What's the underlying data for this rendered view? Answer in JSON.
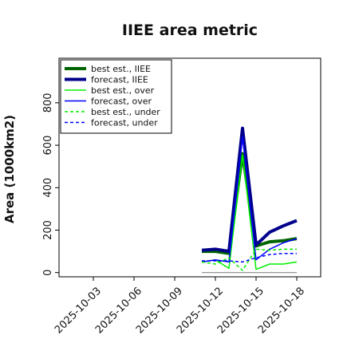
{
  "chart_data": {
    "type": "line",
    "title": "IIEE area metric",
    "xlabel": "",
    "ylabel": "Area (1000km2)",
    "categories": [
      "2025-10-01",
      "2025-10-02",
      "2025-10-03",
      "2025-10-04",
      "2025-10-05",
      "2025-10-06",
      "2025-10-07",
      "2025-10-08",
      "2025-10-09",
      "2025-10-10",
      "2025-10-11",
      "2025-10-12",
      "2025-10-13",
      "2025-10-14",
      "2025-10-15",
      "2025-10-16",
      "2025-10-17",
      "2025-10-18"
    ],
    "xticks": [
      "2025-10-03",
      "2025-10-06",
      "2025-10-09",
      "2025-10-12",
      "2025-10-15",
      "2025-10-18"
    ],
    "highlight_tick": "2025-10-09",
    "highlight_color": "#228B22",
    "ylim": [
      -20,
      1010
    ],
    "yticks": [
      0,
      200,
      400,
      600,
      800
    ],
    "legend_position": "upper-left",
    "grid": false,
    "zero_line": {
      "y": 0,
      "x_from": "2025-10-11",
      "x_to": "2025-10-18",
      "color": "#888888"
    },
    "series": [
      {
        "name": "best est., IIEE",
        "color": "#006400",
        "width": 4,
        "dash": "",
        "x": [
          "2025-10-11",
          "2025-10-12",
          "2025-10-13",
          "2025-10-14",
          "2025-10-15",
          "2025-10-16",
          "2025-10-17",
          "2025-10-18"
        ],
        "y": [
          100,
          100,
          90,
          560,
          125,
          145,
          150,
          160
        ]
      },
      {
        "name": "forecast, IIEE",
        "color": "#00008B",
        "width": 4,
        "dash": "",
        "x": [
          "2025-10-11",
          "2025-10-12",
          "2025-10-13",
          "2025-10-14",
          "2025-10-15",
          "2025-10-16",
          "2025-10-17",
          "2025-10-18"
        ],
        "y": [
          105,
          110,
          100,
          680,
          130,
          190,
          220,
          245
        ]
      },
      {
        "name": "best est., over",
        "color": "#00ee00",
        "width": 1.5,
        "dash": "",
        "x": [
          "2025-10-11",
          "2025-10-12",
          "2025-10-13",
          "2025-10-14",
          "2025-10-15",
          "2025-10-16",
          "2025-10-17",
          "2025-10-18"
        ],
        "y": [
          50,
          60,
          20,
          555,
          15,
          40,
          40,
          50
        ]
      },
      {
        "name": "forecast, over",
        "color": "#0000ff",
        "width": 1.5,
        "dash": "",
        "x": [
          "2025-10-11",
          "2025-10-12",
          "2025-10-13",
          "2025-10-14",
          "2025-10-15",
          "2025-10-16",
          "2025-10-17",
          "2025-10-18"
        ],
        "y": [
          50,
          60,
          50,
          640,
          60,
          110,
          140,
          160
        ]
      },
      {
        "name": "best est., under",
        "color": "#00ee00",
        "width": 1.5,
        "dash": "4,3",
        "x": [
          "2025-10-11",
          "2025-10-12",
          "2025-10-13",
          "2025-10-14",
          "2025-10-15",
          "2025-10-16",
          "2025-10-17",
          "2025-10-18"
        ],
        "y": [
          50,
          40,
          70,
          10,
          110,
          105,
          110,
          110
        ]
      },
      {
        "name": "forecast, under",
        "color": "#0000ff",
        "width": 1.5,
        "dash": "4,3",
        "x": [
          "2025-10-11",
          "2025-10-12",
          "2025-10-13",
          "2025-10-14",
          "2025-10-15",
          "2025-10-16",
          "2025-10-17",
          "2025-10-18"
        ],
        "y": [
          55,
          55,
          55,
          50,
          70,
          85,
          90,
          90
        ]
      }
    ]
  }
}
